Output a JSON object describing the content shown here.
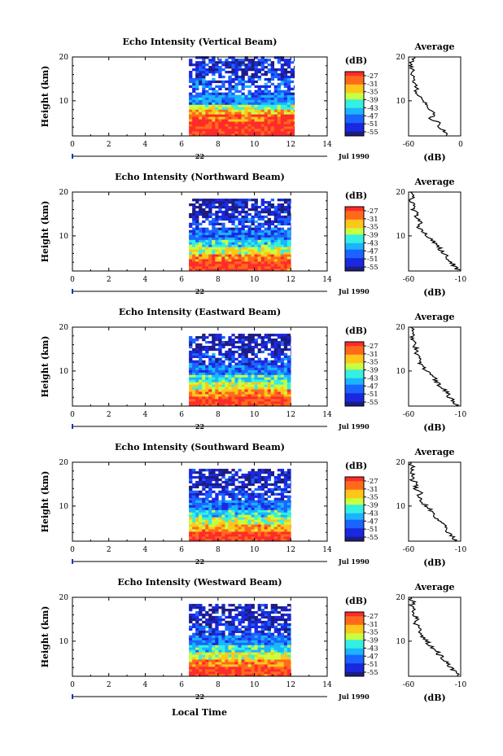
{
  "figure": {
    "x_axis_label": "Local Time",
    "date_day": "22",
    "date_label": "Jul 1990"
  },
  "colorbar": {
    "unit": "(dB)",
    "ticks": [
      "-27",
      "-31",
      "-35",
      "-39",
      "-43",
      "-47",
      "-51",
      "-55"
    ],
    "colors": [
      "#ff2a2a",
      "#ff6a1a",
      "#ffc61a",
      "#c8ff40",
      "#34f0e0",
      "#1ab4ff",
      "#1a64ff",
      "#1a28e0",
      "#1c1c82"
    ]
  },
  "average_panel": {
    "title": "Average",
    "xlabel": "(dB)"
  },
  "chart_data": [
    {
      "type": "heatmap",
      "title": "Echo Intensity (Vertical Beam)",
      "ylabel": "Height (km)",
      "xlim": [
        0,
        14
      ],
      "ylim": [
        2,
        20
      ],
      "xticks": [
        0,
        2,
        4,
        6,
        8,
        10,
        12,
        14
      ],
      "yticks": [
        10,
        20
      ],
      "data_time_range": [
        6.4,
        12.2
      ],
      "layers_db": [
        {
          "h": [
            2,
            5
          ],
          "db": -27
        },
        {
          "h": [
            5,
            6.5
          ],
          "db": -30
        },
        {
          "h": [
            6.5,
            7.5
          ],
          "db": -34
        },
        {
          "h": [
            7.5,
            9
          ],
          "db": -39
        },
        {
          "h": [
            9,
            11
          ],
          "db": -47
        },
        {
          "h": [
            11,
            15
          ],
          "db": -50
        },
        {
          "h": [
            15,
            20
          ],
          "db": -53
        }
      ],
      "average": {
        "xlim": [
          -60,
          0
        ],
        "xticks": [
          -60,
          0
        ],
        "yticks": [
          10,
          20
        ],
        "height": [
          2,
          3,
          4,
          5,
          6,
          7,
          8,
          9,
          10,
          11,
          12,
          13,
          14,
          15,
          16,
          17,
          18,
          19,
          20
        ],
        "db": [
          -15,
          -18,
          -25,
          -25,
          -35,
          -30,
          -38,
          -40,
          -42,
          -46,
          -52,
          -50,
          -55,
          -52,
          -56,
          -55,
          -57,
          -56,
          -53
        ]
      }
    },
    {
      "type": "heatmap",
      "title": "Echo Intensity (Northward Beam)",
      "ylabel": "Height (km)",
      "xlim": [
        0,
        14
      ],
      "ylim": [
        2,
        20
      ],
      "xticks": [
        0,
        2,
        4,
        6,
        8,
        10,
        12,
        14
      ],
      "yticks": [
        10,
        20
      ],
      "data_time_range": [
        6.4,
        12.0
      ],
      "layers_db": [
        {
          "h": [
            2,
            4
          ],
          "db": -28
        },
        {
          "h": [
            4,
            5.5
          ],
          "db": -32
        },
        {
          "h": [
            5.5,
            7
          ],
          "db": -37
        },
        {
          "h": [
            7,
            9
          ],
          "db": -43
        },
        {
          "h": [
            9,
            11
          ],
          "db": -48
        },
        {
          "h": [
            11,
            14
          ],
          "db": -51
        },
        {
          "h": [
            14,
            18.5
          ],
          "db": -54
        }
      ],
      "average": {
        "xlim": [
          -60,
          -10
        ],
        "xticks": [
          -60,
          -10
        ],
        "yticks": [
          10,
          20
        ],
        "height": [
          2,
          3,
          4,
          5,
          6,
          7,
          8,
          9,
          10,
          11,
          12,
          13,
          14,
          15,
          16,
          17,
          18,
          19,
          20
        ],
        "db": [
          -12,
          -15,
          -20,
          -22,
          -26,
          -30,
          -33,
          -38,
          -42,
          -46,
          -50,
          -48,
          -53,
          -51,
          -55,
          -54,
          -57,
          -56,
          -58
        ]
      }
    },
    {
      "type": "heatmap",
      "title": "Echo Intensity (Eastward Beam)",
      "ylabel": "Height (km)",
      "xlim": [
        0,
        14
      ],
      "ylim": [
        2,
        20
      ],
      "xticks": [
        0,
        2,
        4,
        6,
        8,
        10,
        12,
        14
      ],
      "yticks": [
        10,
        20
      ],
      "data_time_range": [
        6.4,
        12.0
      ],
      "layers_db": [
        {
          "h": [
            2,
            4
          ],
          "db": -28
        },
        {
          "h": [
            4,
            5.5
          ],
          "db": -32
        },
        {
          "h": [
            5.5,
            7
          ],
          "db": -37
        },
        {
          "h": [
            7,
            9
          ],
          "db": -42
        },
        {
          "h": [
            9,
            11
          ],
          "db": -48
        },
        {
          "h": [
            11,
            14
          ],
          "db": -51
        },
        {
          "h": [
            14,
            18.5
          ],
          "db": -54
        }
      ],
      "average": {
        "xlim": [
          -60,
          -10
        ],
        "xticks": [
          -60,
          -10
        ],
        "yticks": [
          10,
          20
        ],
        "height": [
          2,
          3,
          4,
          5,
          6,
          7,
          8,
          9,
          10,
          11,
          12,
          13,
          14,
          15,
          16,
          17,
          18,
          19,
          20
        ],
        "db": [
          -13,
          -16,
          -21,
          -23,
          -27,
          -31,
          -34,
          -38,
          -43,
          -47,
          -50,
          -49,
          -53,
          -52,
          -55,
          -55,
          -57,
          -56,
          -58
        ]
      }
    },
    {
      "type": "heatmap",
      "title": "Echo Intensity (Southward Beam)",
      "ylabel": "Height (km)",
      "xlim": [
        0,
        14
      ],
      "ylim": [
        2,
        20
      ],
      "xticks": [
        0,
        2,
        4,
        6,
        8,
        10,
        12,
        14
      ],
      "yticks": [
        10,
        20
      ],
      "data_time_range": [
        6.4,
        12.0
      ],
      "layers_db": [
        {
          "h": [
            2,
            4
          ],
          "db": -28
        },
        {
          "h": [
            4,
            5.5
          ],
          "db": -33
        },
        {
          "h": [
            5.5,
            7
          ],
          "db": -38
        },
        {
          "h": [
            7,
            9
          ],
          "db": -43
        },
        {
          "h": [
            9,
            11
          ],
          "db": -48
        },
        {
          "h": [
            11,
            14
          ],
          "db": -51
        },
        {
          "h": [
            14,
            18.5
          ],
          "db": -54
        }
      ],
      "average": {
        "xlim": [
          -60,
          -10
        ],
        "xticks": [
          -60,
          -10
        ],
        "yticks": [
          10,
          20
        ],
        "height": [
          2,
          3,
          4,
          5,
          6,
          7,
          8,
          9,
          10,
          11,
          12,
          13,
          14,
          15,
          16,
          17,
          18,
          19,
          20
        ],
        "db": [
          -14,
          -17,
          -22,
          -24,
          -28,
          -32,
          -35,
          -39,
          -43,
          -47,
          -50,
          -49,
          -54,
          -52,
          -56,
          -55,
          -58,
          -56,
          -58
        ]
      }
    },
    {
      "type": "heatmap",
      "title": "Echo Intensity (Westward Beam)",
      "ylabel": "Height (km)",
      "xlim": [
        0,
        14
      ],
      "ylim": [
        2,
        20
      ],
      "xticks": [
        0,
        2,
        4,
        6,
        8,
        10,
        12,
        14
      ],
      "yticks": [
        10,
        20
      ],
      "data_time_range": [
        6.4,
        12.0
      ],
      "layers_db": [
        {
          "h": [
            2,
            4
          ],
          "db": -28
        },
        {
          "h": [
            4,
            5.5
          ],
          "db": -32
        },
        {
          "h": [
            5.5,
            7
          ],
          "db": -37
        },
        {
          "h": [
            7,
            9
          ],
          "db": -43
        },
        {
          "h": [
            9,
            11
          ],
          "db": -48
        },
        {
          "h": [
            11,
            14
          ],
          "db": -51
        },
        {
          "h": [
            14,
            18.5
          ],
          "db": -54
        }
      ],
      "average": {
        "xlim": [
          -60,
          -10
        ],
        "xticks": [
          -60,
          -10
        ],
        "yticks": [
          10,
          20
        ],
        "height": [
          2,
          3,
          4,
          5,
          6,
          7,
          8,
          9,
          10,
          11,
          12,
          13,
          14,
          15,
          16,
          17,
          18,
          19,
          20
        ],
        "db": [
          -12,
          -15,
          -20,
          -23,
          -27,
          -31,
          -34,
          -39,
          -43,
          -46,
          -50,
          -48,
          -53,
          -52,
          -55,
          -54,
          -57,
          -56,
          -58
        ]
      }
    }
  ]
}
